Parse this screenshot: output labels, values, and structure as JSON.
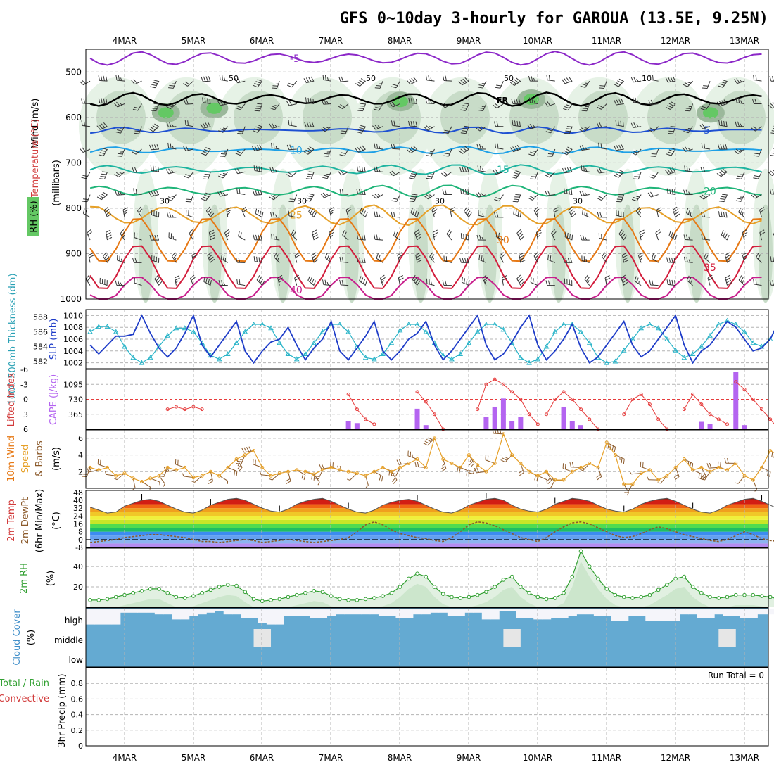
{
  "title": "GFS 0~10day 3-hourly for GAROUA (13.5E, 9.25N)",
  "dates": [
    "4MAR",
    "5MAR",
    "6MAR",
    "7MAR",
    "8MAR",
    "9MAR",
    "10MAR",
    "11MAR",
    "12MAR",
    "13MAR"
  ],
  "colors": {
    "grid": "#b4b4b4",
    "rh_light": "#e6f2e6",
    "rh_mid": "#c8dcc8",
    "rh_dark": "#9bb89b",
    "rh_green": "#64c864",
    "t_m5": "#8c28c8",
    "t_5": "#1e50d2",
    "t_10": "#1ea0e6",
    "t_15": "#1eb4a0",
    "t_20": "#1eb478",
    "t_25": "#e6a028",
    "t_30": "#e67814",
    "t_35": "#d21e3c",
    "t_40": "#c81e8c",
    "slp": "#1e3cc8",
    "thick": "#28b4c8",
    "cape": "#b464f0",
    "li": "#e63c3c",
    "wind": "#e6a028",
    "cloud": "#64aad2",
    "cloud_clear": "#f5f5fa",
    "rh2m": "#32a032"
  },
  "chart_data": [
    {
      "panel": "upper-air",
      "type": "heatmap",
      "ylabel_parts": [
        "Wind (m/s)",
        "Temperature (°C)",
        "RH (%)",
        "(millibars)"
      ],
      "yticks": [
        "500",
        "600",
        "700",
        "800",
        "900",
        "1000"
      ],
      "ylim": [
        450,
        1000
      ],
      "temperature_contours": [
        {
          "label": "-5",
          "color": "#8c28c8",
          "base_hpa": 470,
          "amp": 12
        },
        {
          "label": "FR",
          "color": "#000000",
          "base_hpa": 560,
          "amp": 12
        },
        {
          "label": "5",
          "color": "#1e50d2",
          "base_hpa": 628,
          "amp": 4
        },
        {
          "label": "10",
          "color": "#1ea0e6",
          "base_hpa": 672,
          "amp": 5
        },
        {
          "label": "15",
          "color": "#1eb4a0",
          "base_hpa": 715,
          "amp": 8
        },
        {
          "label": "20",
          "color": "#1eb478",
          "base_hpa": 762,
          "amp": 10
        },
        {
          "label": "25",
          "color": "#e6a028",
          "base_hpa": 815,
          "amp": 20
        },
        {
          "label": "30",
          "color": "#e67814",
          "base_hpa": 870,
          "amp": 50
        },
        {
          "label": "35",
          "color": "#d21e3c",
          "base_hpa": 930,
          "amp": 50
        },
        {
          "label": "40",
          "color": "#c81e8c",
          "base_hpa": 980,
          "amp": 30
        }
      ],
      "rh_contour_labels": [
        "30",
        "50",
        "30",
        "50",
        "30",
        "50",
        "30",
        "10"
      ]
    },
    {
      "panel": "slp-thickness",
      "type": "line",
      "ylabel_left": "1000-500mb Thickness (dm)",
      "ylabel_right": "SLP (mb)",
      "thickness_ticks": [
        "582",
        "584",
        "586",
        "588"
      ],
      "slp_ticks": [
        "1002",
        "1004",
        "1006",
        "1008",
        "1010"
      ],
      "slp_lim": [
        1001,
        1011
      ],
      "thickness_lim": [
        581,
        589
      ],
      "series": [
        {
          "name": "SLP (mb)",
          "color": "#1e3cc8",
          "values": [
            1005,
            1003.5,
            1005,
            1006.5,
            1006.5,
            1006.8,
            1010,
            1007,
            1004.5,
            1003,
            1004.5,
            1007,
            1010,
            1005,
            1003,
            1005,
            1007,
            1009,
            1004,
            1002,
            1004,
            1005.5,
            1006,
            1008,
            1005,
            1002.5,
            1004.5,
            1006,
            1009,
            1004,
            1002.5,
            1004.5,
            1006.5,
            1009,
            1004,
            1002.5,
            1004,
            1006,
            1007,
            1009,
            1005,
            1002.5,
            1004,
            1006,
            1008,
            1010,
            1005,
            1002.5,
            1003.5,
            1005.5,
            1008,
            1010,
            1005,
            1002.5,
            1004,
            1006,
            1008.5,
            1004.5,
            1002,
            1003,
            1005,
            1007,
            1009,
            1005,
            1003,
            1004,
            1006,
            1008,
            1010,
            1005,
            1002,
            1004,
            1005,
            1007,
            1009,
            1008,
            1006,
            1004,
            1004.5,
            1006,
            1009,
            1007,
            1003,
            1005,
            1007,
            1010,
            1006,
            1004,
            1005,
            1007,
            1008,
            1010
          ]
        },
        {
          "name": "Thickness (dm)",
          "color": "#28b4c8",
          "values": [
            586,
            586.7,
            586.7,
            586,
            584,
            582.5,
            581.8,
            582.5,
            584,
            585.5,
            586.5,
            586.5,
            586,
            584.5,
            582.8,
            582.3,
            583,
            584.5,
            586,
            587,
            587,
            586.5,
            584.5,
            583,
            582.3,
            583,
            584.5,
            586,
            587,
            587,
            586,
            584,
            582.5,
            582.3,
            583,
            584.5,
            586.2,
            587,
            587,
            586,
            584.5,
            582.8,
            582.3,
            583,
            584.5,
            586,
            587,
            587,
            586.3,
            584.5,
            582.5,
            581.8,
            582.3,
            584,
            586,
            587,
            587,
            586,
            584.5,
            582.5,
            581.8,
            582,
            583.5,
            585,
            586.5,
            587,
            586.5,
            585,
            583.5,
            582.5,
            583,
            584,
            585.5,
            587,
            587.5,
            587,
            586,
            584.5,
            584,
            585,
            587,
            588,
            587.5,
            586,
            585,
            583.5,
            583,
            583.5,
            584.5,
            586,
            585,
            583,
            582
          ]
        }
      ]
    },
    {
      "panel": "cape-lifted-index",
      "type": "bar",
      "ylabel_left": "Lifted Index",
      "ylabel_right": "CAPE (J/kg)",
      "li_ticks": [
        "-6",
        "-3",
        "0",
        "3",
        "6"
      ],
      "cape_ticks": [
        "365",
        "730",
        "1095"
      ],
      "cape_lim": [
        0,
        1460
      ],
      "cape_values": [
        [
          30,
          200
        ],
        [
          31,
          150
        ],
        [
          38,
          500
        ],
        [
          39,
          100
        ],
        [
          46,
          300
        ],
        [
          47,
          550
        ],
        [
          48,
          750
        ],
        [
          49,
          200
        ],
        [
          50,
          300
        ],
        [
          55,
          550
        ],
        [
          56,
          200
        ],
        [
          57,
          100
        ],
        [
          71,
          180
        ],
        [
          72,
          130
        ],
        [
          75,
          1400
        ],
        [
          76,
          100
        ],
        [
          84,
          150
        ]
      ],
      "li_segments": [
        [
          [
            9,
            2
          ],
          [
            10,
            1.5
          ],
          [
            11,
            2
          ],
          [
            12,
            1.5
          ],
          [
            13,
            2
          ]
        ],
        [
          [
            30,
            -1
          ],
          [
            31,
            2
          ],
          [
            32,
            4
          ],
          [
            33,
            5
          ]
        ],
        [
          [
            38,
            -1.5
          ],
          [
            39,
            0.5
          ],
          [
            40,
            3
          ],
          [
            41,
            6
          ]
        ],
        [
          [
            45,
            2
          ],
          [
            46,
            -3
          ],
          [
            47,
            -4
          ],
          [
            48,
            -3
          ],
          [
            49,
            -1.5
          ],
          [
            50,
            0
          ],
          [
            51,
            3
          ],
          [
            52,
            5
          ]
        ],
        [
          [
            53,
            3
          ],
          [
            54,
            0
          ],
          [
            55,
            -1.5
          ],
          [
            56,
            0
          ],
          [
            57,
            2
          ],
          [
            58,
            4
          ],
          [
            59,
            6
          ]
        ],
        [
          [
            62,
            3
          ],
          [
            63,
            0
          ],
          [
            64,
            -1
          ],
          [
            65,
            1
          ],
          [
            66,
            4
          ],
          [
            67,
            6
          ]
        ],
        [
          [
            69,
            2
          ],
          [
            70,
            -1
          ],
          [
            71,
            1
          ],
          [
            72,
            3
          ],
          [
            73,
            4
          ],
          [
            74,
            5
          ]
        ],
        [
          [
            75,
            -3.5
          ],
          [
            76,
            -2
          ],
          [
            77,
            0
          ],
          [
            78,
            2
          ],
          [
            79,
            4
          ],
          [
            80,
            6
          ]
        ],
        [
          [
            83,
            3
          ],
          [
            84,
            -2
          ],
          [
            85,
            -3
          ]
        ]
      ]
    },
    {
      "panel": "10m-wind",
      "type": "line",
      "ylabel": "10m Wind Speed (m/s) & Barbs",
      "yticks": [
        "2",
        "4",
        "6"
      ],
      "ylim": [
        0,
        7
      ],
      "series": [
        {
          "name": "Speed",
          "color": "#e6a028",
          "values": [
            2.5,
            2.2,
            2.5,
            1.5,
            1.8,
            1.2,
            0.8,
            1.2,
            1.5,
            2.5,
            2.2,
            2.5,
            1.3,
            1.5,
            2,
            1.5,
            2.5,
            3.5,
            4,
            4.5,
            2.5,
            1.5,
            1.8,
            2,
            2.2,
            2,
            1.7,
            2.2,
            2.5,
            2.2,
            2,
            1.8,
            1.5,
            2,
            2.5,
            2,
            2.5,
            3,
            3.5,
            2.5,
            6,
            3.5,
            3,
            2.5,
            4,
            2.8,
            2,
            3,
            6.5,
            4,
            3,
            2,
            1.5,
            2,
            1,
            1,
            2,
            2.5,
            3,
            2.5,
            5.5,
            4,
            0.5,
            0.5,
            1.8,
            2.2,
            1,
            1.5,
            2.5,
            3.5,
            2.2,
            2.5,
            2,
            2.5,
            2.2,
            3,
            1.5,
            1,
            2.5,
            4.5,
            4,
            3,
            0.8,
            1,
            2.5,
            4,
            5,
            3.5,
            2,
            3,
            4,
            5.5,
            3.5,
            0.8,
            2.5,
            2.2,
            4.5
          ]
        }
      ]
    },
    {
      "panel": "2m-temp-dewpoint",
      "type": "area",
      "ylabel": "2m Temp 2m DewPt (6hr Min/Max) (°C)",
      "yticks": [
        "-8",
        "0",
        "8",
        "16",
        "24",
        "32",
        "40",
        "48"
      ],
      "ylim": [
        -8,
        50
      ],
      "series": [
        {
          "name": "2m Temp",
          "values": [
            33,
            30,
            27,
            28,
            34,
            37,
            40,
            41,
            39,
            35,
            31,
            28,
            27,
            30,
            35,
            38,
            41,
            42,
            40,
            36,
            32,
            29,
            28,
            31,
            36,
            39,
            41,
            42,
            39,
            35,
            31,
            28,
            27,
            30,
            35,
            38,
            40,
            41,
            39,
            35,
            31,
            28,
            27,
            30,
            35,
            38,
            41,
            42,
            40,
            35,
            31,
            29,
            28,
            31,
            36,
            39,
            42,
            41,
            39,
            35,
            31,
            29,
            28,
            31,
            36,
            39,
            41,
            42,
            39,
            35,
            31,
            28,
            27,
            30,
            35,
            38,
            41,
            42,
            39,
            35,
            31,
            28,
            27,
            31,
            36,
            39,
            41,
            42,
            39,
            34,
            30,
            28,
            27
          ]
        },
        {
          "name": "2m DewPt",
          "values": [
            -3,
            -2,
            -1,
            0,
            2,
            3,
            4,
            5,
            5,
            4,
            3,
            2,
            0,
            -2,
            -2,
            -3,
            -2,
            -1,
            0,
            -1,
            -3,
            -2,
            -1,
            0,
            -1,
            -2,
            -3,
            -2,
            -1,
            0,
            2,
            8,
            15,
            18,
            15,
            10,
            6,
            4,
            2,
            1,
            -1,
            -2,
            2,
            8,
            15,
            18,
            17,
            14,
            10,
            6,
            2,
            0,
            -2,
            2,
            8,
            13,
            17,
            18,
            16,
            12,
            8,
            4,
            2,
            3,
            6,
            10,
            13,
            11,
            8,
            5,
            3,
            1,
            -1,
            -2,
            0,
            4,
            8,
            5,
            1,
            -1,
            -2,
            5,
            12,
            17,
            12,
            5,
            -2,
            -2,
            8,
            15
          ]
        }
      ]
    },
    {
      "panel": "2m-rh",
      "type": "area",
      "ylabel": "2m RH (%)",
      "yticks": [
        "20",
        "40"
      ],
      "ylim": [
        0,
        58
      ],
      "series": [
        {
          "name": "2m RH",
          "color": "#32a032",
          "values": [
            7,
            7,
            8,
            10,
            12,
            14,
            16,
            18,
            18,
            14,
            10,
            9,
            11,
            14,
            17,
            20,
            22,
            21,
            15,
            8,
            6,
            7,
            8,
            10,
            12,
            14,
            16,
            15,
            11,
            8,
            7,
            7,
            8,
            9,
            11,
            14,
            20,
            28,
            33,
            30,
            20,
            13,
            10,
            9,
            10,
            12,
            15,
            20,
            27,
            30,
            20,
            14,
            10,
            8,
            9,
            14,
            30,
            55,
            40,
            28,
            18,
            12,
            10,
            9,
            10,
            12,
            17,
            22,
            28,
            30,
            20,
            14,
            10,
            9,
            10,
            12,
            12,
            12,
            11,
            10,
            8,
            5,
            6,
            8,
            10,
            9,
            10,
            12,
            14,
            20,
            28,
            20,
            12,
            8,
            7,
            12,
            30,
            50
          ]
        }
      ]
    },
    {
      "panel": "cloud-cover",
      "type": "heatmap",
      "ylabel": "Cloud Cover (%)",
      "ytick_labels": [
        "high",
        "middle",
        "low"
      ],
      "high_cover_cleared_fraction": [
        0.9,
        0.9,
        0.9,
        0.9,
        0.2,
        0.2,
        0.2,
        0.2,
        0.3,
        0.3,
        0.6,
        0.6,
        0.4,
        0.3,
        0.2,
        0.1,
        0.3,
        0.3,
        0.5,
        0.5,
        0.8,
        0.9,
        0.9,
        0.4,
        0.4,
        0.4,
        0.5,
        0.5,
        0.4,
        0.3,
        0.3,
        0.3,
        0.3,
        0.3,
        0.4,
        0.4,
        0.5,
        0.5,
        0.3,
        0.3,
        0.2,
        0.2,
        0.4,
        0.4,
        0.2,
        0.2,
        0.6,
        0.6,
        0.1,
        0.1,
        0.5,
        0.5,
        0.6,
        0.6,
        0.5,
        0.5,
        0.4,
        0.3,
        0.3,
        0.4,
        0.4,
        0.7,
        0.7,
        0.4,
        0.4,
        0.7,
        0.7,
        0.7,
        0.7,
        0.3,
        0.3,
        0.5,
        0.5,
        0.3,
        0.4,
        0.4,
        0.5,
        0.5,
        0.3,
        0.3,
        0.3,
        0.1,
        0.1,
        0.2,
        0.2,
        0.5,
        0.4,
        0.6,
        0.7,
        0.7,
        0.7,
        0.7,
        0.8,
        0.8,
        0.8,
        0.8
      ]
    },
    {
      "panel": "3hr-precip",
      "type": "bar",
      "ylabel": "Total / Rain Convective 3hr Precip (mm)",
      "ylabel_total": "Total / Rain",
      "ylabel_conv": "Convective",
      "yticks": [
        "0",
        "0.2",
        "0.4",
        "0.6",
        "0.8"
      ],
      "ylim": [
        0,
        1.0
      ],
      "annotation": "Run Total = 0",
      "values": []
    }
  ]
}
